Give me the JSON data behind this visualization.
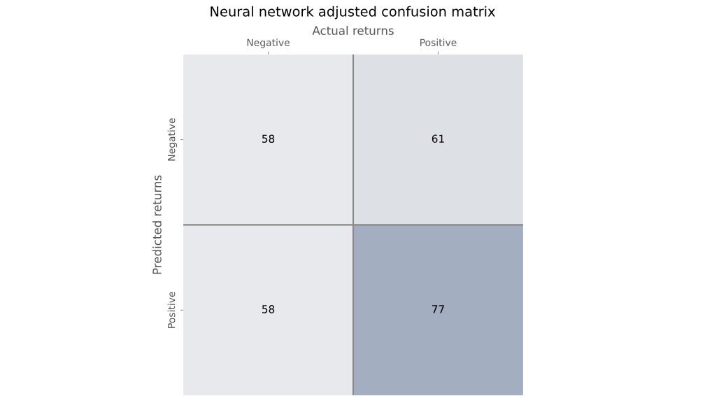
{
  "chart_data": {
    "type": "heatmap",
    "title": "Neural network adjusted confusion matrix",
    "xlabel": "Actual returns",
    "ylabel": "Predicted returns",
    "categories": [
      "Negative",
      "Positive"
    ],
    "y_categories": [
      "Negative",
      "Positive"
    ],
    "cells": [
      [
        58,
        61
      ],
      [
        58,
        77
      ]
    ],
    "colors": [
      "#e8e9ec",
      "#a3aec0"
    ],
    "data_labels": true,
    "grid": true
  }
}
